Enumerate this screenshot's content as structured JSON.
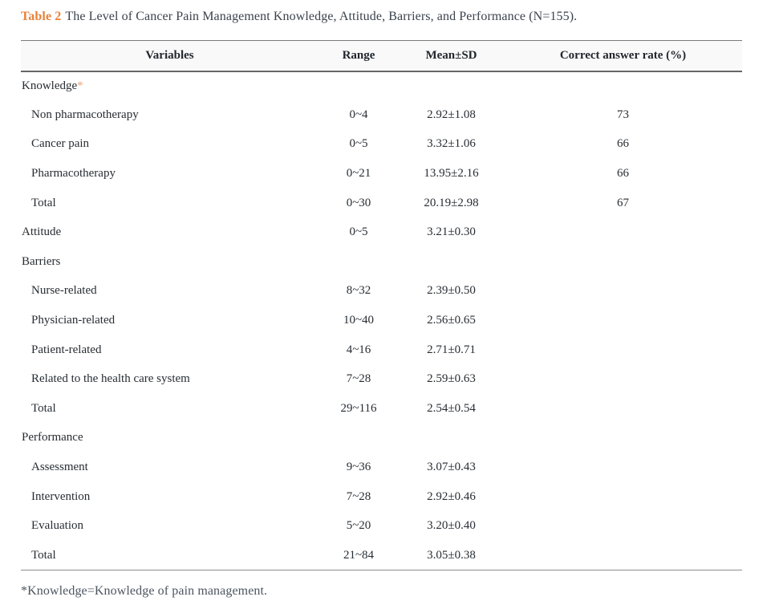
{
  "title": {
    "label": "Table 2",
    "text": "The Level of Cancer Pain Management Knowledge, Attitude, Barriers, and Performance (N=155)."
  },
  "table": {
    "columns": [
      "Variables",
      "Range",
      "Mean±SD",
      "Correct answer rate (%)"
    ],
    "rows": [
      {
        "variable": "Knowledge",
        "marker": "*",
        "indent": false,
        "range": "",
        "mean_sd": "",
        "correct_rate": ""
      },
      {
        "variable": "Non pharmacotherapy",
        "indent": true,
        "range": "0~4",
        "mean_sd": "2.92±1.08",
        "correct_rate": "73"
      },
      {
        "variable": "Cancer pain",
        "indent": true,
        "range": "0~5",
        "mean_sd": "3.32±1.06",
        "correct_rate": "66"
      },
      {
        "variable": "Pharmacotherapy",
        "indent": true,
        "range": "0~21",
        "mean_sd": "13.95±2.16",
        "correct_rate": "66"
      },
      {
        "variable": "Total",
        "indent": true,
        "range": "0~30",
        "mean_sd": "20.19±2.98",
        "correct_rate": "67"
      },
      {
        "variable": "Attitude",
        "indent": false,
        "range": "0~5",
        "mean_sd": "3.21±0.30",
        "correct_rate": ""
      },
      {
        "variable": "Barriers",
        "indent": false,
        "range": "",
        "mean_sd": "",
        "correct_rate": ""
      },
      {
        "variable": "Nurse-related",
        "indent": true,
        "range": "8~32",
        "mean_sd": "2.39±0.50",
        "correct_rate": ""
      },
      {
        "variable": "Physician-related",
        "indent": true,
        "range": "10~40",
        "mean_sd": "2.56±0.65",
        "correct_rate": ""
      },
      {
        "variable": "Patient-related",
        "indent": true,
        "range": "4~16",
        "mean_sd": "2.71±0.71",
        "correct_rate": ""
      },
      {
        "variable": "Related to the health care system",
        "indent": true,
        "range": "7~28",
        "mean_sd": "2.59±0.63",
        "correct_rate": ""
      },
      {
        "variable": "Total",
        "indent": true,
        "range": "29~116",
        "mean_sd": "2.54±0.54",
        "correct_rate": ""
      },
      {
        "variable": "Performance",
        "indent": false,
        "range": "",
        "mean_sd": "",
        "correct_rate": ""
      },
      {
        "variable": "Assessment",
        "indent": true,
        "range": "9~36",
        "mean_sd": "3.07±0.43",
        "correct_rate": ""
      },
      {
        "variable": "Intervention",
        "indent": true,
        "range": "7~28",
        "mean_sd": "2.92±0.46",
        "correct_rate": ""
      },
      {
        "variable": "Evaluation",
        "indent": true,
        "range": "5~20",
        "mean_sd": "3.20±0.40",
        "correct_rate": ""
      },
      {
        "variable": "Total",
        "indent": true,
        "range": "21~84",
        "mean_sd": "3.05±0.38",
        "correct_rate": ""
      }
    ]
  },
  "footnote": {
    "text": "*Knowledge=Knowledge of pain management."
  },
  "colors": {
    "accent_orange": "#E8833A",
    "marker_orange": "#F0A27E",
    "header_background": "#F9F9F9",
    "rule_dark": "#666666",
    "rule_light": "#8C8C8C",
    "title_text": "#3A434D",
    "body_text": "#272D33",
    "footnote_text": "#4C5660"
  }
}
